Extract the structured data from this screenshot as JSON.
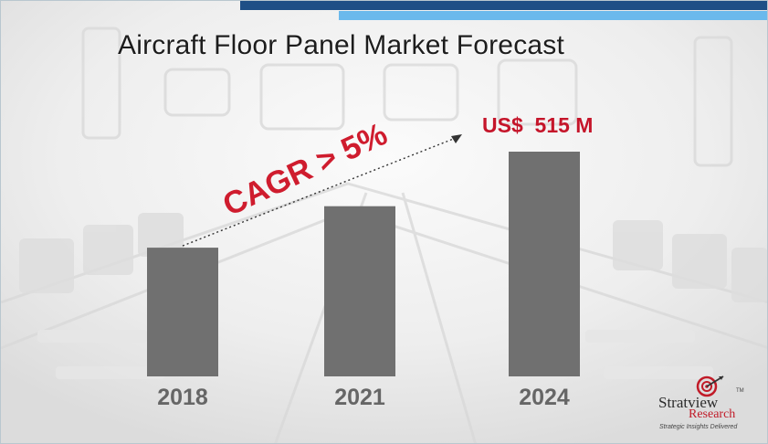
{
  "title": "Aircraft Floor Panel Market Forecast",
  "chart_data": {
    "type": "bar",
    "categories": [
      "2018",
      "2021",
      "2024"
    ],
    "values": [
      295,
      390,
      515
    ],
    "ylim": [
      0,
      600
    ],
    "annotations": {
      "value_label": "US$  515 M",
      "growth_label": "CAGR > 5%"
    },
    "bar_color": "#707070",
    "label_color": "#c5152a"
  },
  "logo": {
    "name_line1": "Stratview",
    "name_line2": "Research",
    "tm": "TM",
    "tagline": "Strategic Insights Delivered"
  },
  "colors": {
    "stripe_dark": "#1f4f86",
    "stripe_light": "#6bb9ec"
  }
}
